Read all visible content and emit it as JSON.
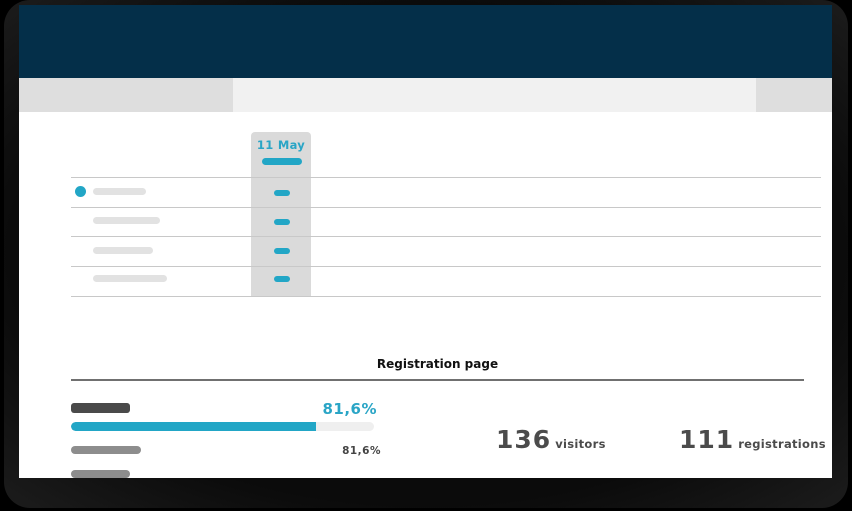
{
  "colors": {
    "header_bg": "#042f49",
    "accent": "#22a6c6",
    "tab_inactive": "#dedede",
    "tab_active": "#f1f1f1",
    "column_highlight": "#dadada",
    "stat_text": "#4b4b4b"
  },
  "table": {
    "columns": [
      {
        "label": "11 May",
        "highlighted": true
      }
    ],
    "rows": [
      {
        "has_indicator_dot": true,
        "label_placeholder_width": 53
      },
      {
        "has_indicator_dot": false,
        "label_placeholder_width": 67
      },
      {
        "has_indicator_dot": false,
        "label_placeholder_width": 60
      },
      {
        "has_indicator_dot": false,
        "label_placeholder_width": 74
      }
    ]
  },
  "registration": {
    "title": "Registration page",
    "conversion_big": "81,6%",
    "conversion_small": "81,6%",
    "progress_percent": 81.6,
    "visitors": {
      "value": "136",
      "unit": "visitors"
    },
    "registrations": {
      "value": "111",
      "unit": "registrations"
    }
  }
}
